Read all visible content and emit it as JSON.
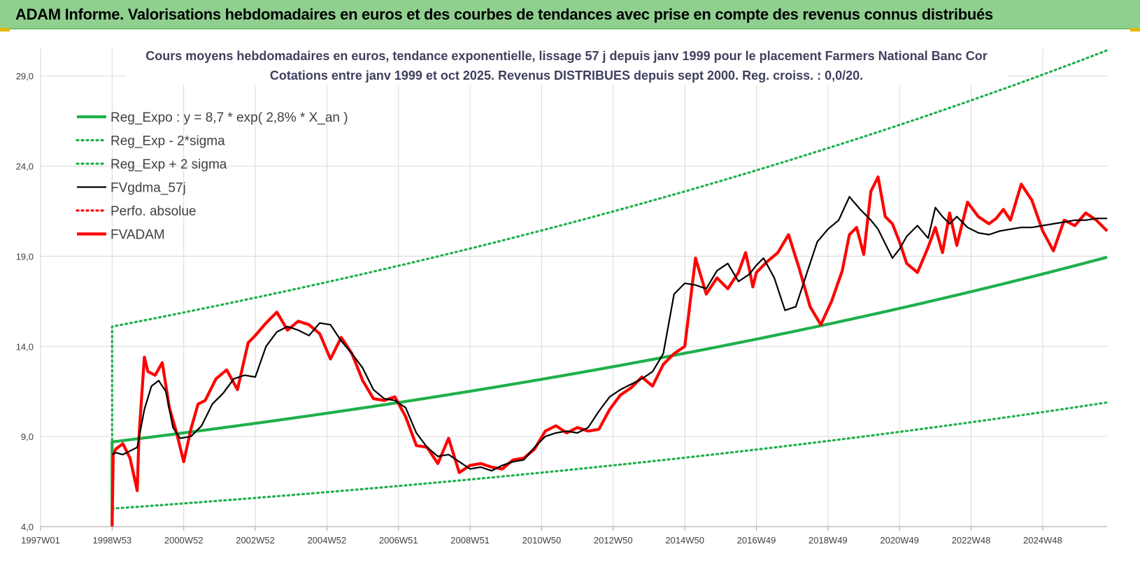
{
  "header": {
    "title": "ADAM Informe. Valorisations hebdomadaires en euros et des courbes de tendances avec prise en compte des revenus connus distribués"
  },
  "colors": {
    "header_bg": "#8fd08f",
    "green": "#1fb04b",
    "red": "#ff0000",
    "black": "#000000",
    "grid": "#d9d9d9"
  },
  "chart_data": {
    "type": "line",
    "title": [
      "Cours moyens hebdomadaires en euros, tendance exponentielle, lissage 57 j depuis janv 1999 pour le placement Farmers National Banc Cor",
      "Cotations entre janv 1999 et oct 2025. Revenus DISTRIBUES depuis sept 2000. Reg. croiss. : 0,0/20."
    ],
    "xlabel": "",
    "ylabel": "",
    "xlim": [
      1997.0,
      2026.8
    ],
    "ylim": [
      4,
      30.5
    ],
    "grid": true,
    "legend_placement": "top-left",
    "x_tick_labels": [
      "1997W01",
      "1998W53",
      "2000W52",
      "2002W52",
      "2004W52",
      "2006W51",
      "2008W51",
      "2010W50",
      "2012W50",
      "2014W50",
      "2016W49",
      "2018W49",
      "2020W49",
      "2022W48",
      "2024W48"
    ],
    "x_tick_values": [
      1997.0,
      1999.0,
      2001.0,
      2003.0,
      2005.0,
      2007.0,
      2009.0,
      2011.0,
      2013.0,
      2015.0,
      2017.0,
      2019.0,
      2021.0,
      2023.0,
      2025.0
    ],
    "y_tick_labels": [
      "4,0",
      "9,0",
      "14,0",
      "19,0",
      "24,0",
      "29,0"
    ],
    "y_tick_values": [
      4,
      9,
      14,
      19,
      24,
      29
    ],
    "series": [
      {
        "name": "Reg_Expo : y = 8,7 * exp( 2,8% *  X_an )",
        "style": "solid-thick",
        "color": "#1fb04b",
        "formula": {
          "a": 8.7,
          "rate": 0.028,
          "x0": 1999.0,
          "start_drop_from": 4.0
        },
        "x_range": [
          1999.0,
          2026.8
        ]
      },
      {
        "name": "Reg_Exp - 2*sigma",
        "style": "dotted",
        "color": "#1fb04b",
        "formula": {
          "a": 5.0,
          "rate": 0.028,
          "x0": 1999.0
        },
        "x_range": [
          1999.0,
          2026.8
        ]
      },
      {
        "name": "Reg_Exp + 2 sigma",
        "style": "dotted",
        "color": "#1fb04b",
        "formula": {
          "a": 15.1,
          "rate": 0.0252,
          "x0": 1999.0,
          "start_drop_from": 8.8
        },
        "x_range": [
          1999.0,
          2026.8
        ]
      },
      {
        "name": "FVgdma_57j",
        "style": "solid",
        "color": "#000000",
        "x": [
          1999.0,
          1999.1,
          1999.3,
          1999.5,
          1999.7,
          1999.9,
          2000.1,
          2000.3,
          2000.5,
          2000.7,
          2000.9,
          2001.2,
          2001.5,
          2001.8,
          2002.1,
          2002.4,
          2002.7,
          2003.0,
          2003.3,
          2003.6,
          2003.9,
          2004.2,
          2004.5,
          2004.8,
          2005.1,
          2005.4,
          2005.7,
          2006.0,
          2006.3,
          2006.6,
          2006.9,
          2007.2,
          2007.5,
          2007.8,
          2008.1,
          2008.4,
          2008.7,
          2009.0,
          2009.3,
          2009.6,
          2009.9,
          2010.2,
          2010.5,
          2010.8,
          2011.1,
          2011.4,
          2011.7,
          2012.0,
          2012.3,
          2012.6,
          2012.9,
          2013.2,
          2013.5,
          2013.8,
          2014.1,
          2014.4,
          2014.7,
          2015.0,
          2015.3,
          2015.6,
          2015.9,
          2016.2,
          2016.5,
          2016.8,
          2017.0,
          2017.2,
          2017.5,
          2017.8,
          2018.1,
          2018.4,
          2018.7,
          2019.0,
          2019.3,
          2019.6,
          2019.9,
          2020.2,
          2020.4,
          2020.6,
          2020.8,
          2021.0,
          2021.2,
          2021.5,
          2021.8,
          2022.0,
          2022.2,
          2022.4,
          2022.6,
          2022.9,
          2023.2,
          2023.5,
          2023.8,
          2024.1,
          2024.4,
          2024.7,
          2025.0,
          2025.3,
          2025.6,
          2025.9,
          2026.2,
          2026.5,
          2026.8
        ],
        "values": [
          8.0,
          8.1,
          8.0,
          8.2,
          8.4,
          10.5,
          11.8,
          12.1,
          11.5,
          9.5,
          8.9,
          9.0,
          9.6,
          10.8,
          11.4,
          12.2,
          12.4,
          12.3,
          14.0,
          14.8,
          15.1,
          14.9,
          14.6,
          15.3,
          15.2,
          14.3,
          13.6,
          12.8,
          11.6,
          11.1,
          11.0,
          10.6,
          9.2,
          8.4,
          7.9,
          8.0,
          7.6,
          7.2,
          7.3,
          7.1,
          7.4,
          7.6,
          7.7,
          8.4,
          9.0,
          9.2,
          9.3,
          9.2,
          9.5,
          10.4,
          11.2,
          11.6,
          11.9,
          12.2,
          12.6,
          13.6,
          16.9,
          17.5,
          17.4,
          17.2,
          18.2,
          18.6,
          17.6,
          18.0,
          18.5,
          18.9,
          17.8,
          16.0,
          16.2,
          18.0,
          19.8,
          20.5,
          21.0,
          22.3,
          21.6,
          21.0,
          20.5,
          19.7,
          18.9,
          19.4,
          20.1,
          20.7,
          20.0,
          21.7,
          21.2,
          20.8,
          21.2,
          20.6,
          20.3,
          20.2,
          20.4,
          20.5,
          20.6,
          20.6,
          20.7,
          20.8,
          20.9,
          21.0,
          21.0,
          21.1,
          21.1
        ]
      },
      {
        "name": "Perfo. absolue",
        "style": "dotted",
        "color": "#ff0000",
        "values": []
      },
      {
        "name": "FVADAM",
        "style": "solid-thick",
        "color": "#ff0000",
        "x": [
          1999.0,
          1999.03,
          1999.1,
          1999.3,
          1999.5,
          1999.7,
          1999.75,
          1999.9,
          2000.0,
          2000.2,
          2000.4,
          2000.6,
          2000.8,
          2001.0,
          2001.2,
          2001.4,
          2001.6,
          2001.9,
          2002.2,
          2002.5,
          2002.8,
          2003.0,
          2003.3,
          2003.6,
          2003.9,
          2004.2,
          2004.5,
          2004.8,
          2005.1,
          2005.4,
          2005.7,
          2006.0,
          2006.3,
          2006.6,
          2006.9,
          2007.2,
          2007.5,
          2007.8,
          2008.1,
          2008.4,
          2008.7,
          2009.0,
          2009.3,
          2009.6,
          2009.9,
          2010.2,
          2010.5,
          2010.8,
          2011.1,
          2011.4,
          2011.7,
          2012.0,
          2012.3,
          2012.6,
          2012.9,
          2013.2,
          2013.5,
          2013.8,
          2014.1,
          2014.4,
          2014.7,
          2015.0,
          2015.3,
          2015.6,
          2015.9,
          2016.2,
          2016.5,
          2016.7,
          2016.8,
          2016.9,
          2017.0,
          2017.3,
          2017.6,
          2017.9,
          2018.2,
          2018.5,
          2018.8,
          2019.1,
          2019.4,
          2019.6,
          2019.8,
          2020.0,
          2020.2,
          2020.4,
          2020.6,
          2020.8,
          2021.0,
          2021.2,
          2021.5,
          2021.8,
          2022.0,
          2022.2,
          2022.4,
          2022.6,
          2022.9,
          2023.2,
          2023.5,
          2023.7,
          2023.9,
          2024.1,
          2024.4,
          2024.7,
          2025.0,
          2025.3,
          2025.6,
          2025.9,
          2026.2,
          2026.5,
          2026.8
        ],
        "values": [
          4.0,
          8.0,
          8.3,
          8.6,
          7.8,
          6.0,
          9.0,
          13.4,
          12.6,
          12.4,
          13.1,
          10.6,
          9.2,
          7.6,
          9.4,
          10.8,
          11.0,
          12.2,
          12.7,
          11.6,
          14.2,
          14.6,
          15.3,
          15.9,
          14.9,
          15.4,
          15.2,
          14.7,
          13.3,
          14.5,
          13.6,
          12.1,
          11.1,
          11.0,
          11.2,
          10.1,
          8.5,
          8.4,
          7.5,
          8.9,
          7.0,
          7.4,
          7.5,
          7.3,
          7.2,
          7.7,
          7.8,
          8.3,
          9.3,
          9.6,
          9.2,
          9.5,
          9.3,
          9.4,
          10.5,
          11.3,
          11.7,
          12.3,
          11.8,
          13.0,
          13.6,
          14.0,
          18.9,
          16.9,
          17.8,
          17.2,
          18.1,
          19.2,
          18.3,
          17.3,
          18.1,
          18.7,
          19.2,
          20.2,
          18.3,
          16.2,
          15.2,
          16.5,
          18.2,
          20.2,
          20.6,
          19.1,
          22.6,
          23.4,
          21.2,
          20.8,
          19.8,
          18.6,
          18.1,
          19.5,
          20.6,
          19.2,
          21.4,
          19.6,
          22.0,
          21.2,
          20.8,
          21.1,
          21.6,
          21.0,
          23.0,
          22.1,
          20.4,
          19.3,
          21.0,
          20.7,
          21.4,
          21.0,
          20.4
        ]
      }
    ]
  }
}
